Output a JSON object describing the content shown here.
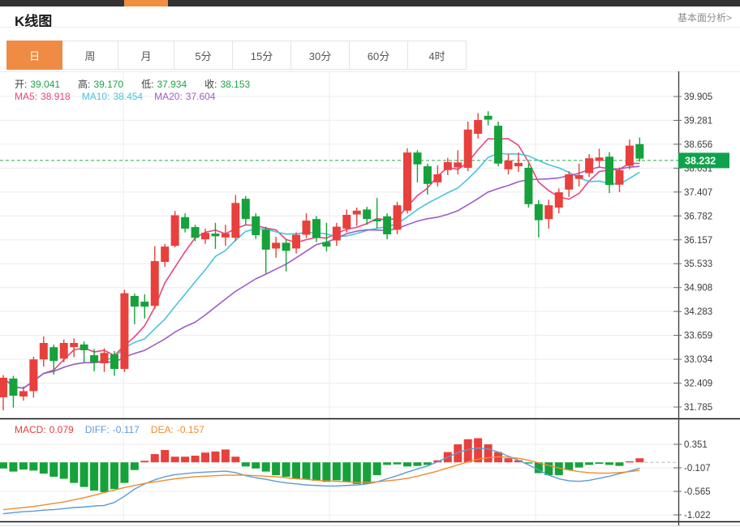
{
  "header": {
    "title": "K线图",
    "link": "基本面分析>"
  },
  "tabs": [
    {
      "label": "日",
      "active": true
    },
    {
      "label": "周",
      "active": false
    },
    {
      "label": "月",
      "active": false
    },
    {
      "label": "5分",
      "active": false
    },
    {
      "label": "15分",
      "active": false
    },
    {
      "label": "30分",
      "active": false
    },
    {
      "label": "60分",
      "active": false
    },
    {
      "label": "4时",
      "active": false
    }
  ],
  "legend": {
    "ohlc": [
      {
        "label": "开:",
        "value": "39.041"
      },
      {
        "label": "高:",
        "value": "39.170"
      },
      {
        "label": "低:",
        "value": "37.934"
      },
      {
        "label": "收:",
        "value": "38.153"
      }
    ],
    "ma": [
      {
        "label": "MA5:",
        "value": "38.918",
        "color": "#e8467c"
      },
      {
        "label": "MA10:",
        "value": "38.454",
        "color": "#45c5de"
      },
      {
        "label": "MA20:",
        "value": "37.604",
        "color": "#a05cc5"
      }
    ],
    "macd": [
      {
        "label": "MACD:",
        "value": "0.079",
        "color": "#e23e3e"
      },
      {
        "label": "DIFF:",
        "value": "-0.117",
        "color": "#5b9bd5"
      },
      {
        "label": "DEA:",
        "value": "-0.157",
        "color": "#ef8b31"
      }
    ]
  },
  "price_badge": "38.232",
  "colors": {
    "up": "#e8403c",
    "down": "#15a23a",
    "badge": "#0fa24c",
    "ma5": "#e8467c",
    "ma10": "#45c5de",
    "ma20": "#a05cc5",
    "diff": "#5b9bd5",
    "dea": "#ef8b31",
    "grid": "#ececec",
    "axis": "#444444",
    "dashed_price": "#2aa84a"
  },
  "chart_data": {
    "type": "candlestick+macd",
    "title": "K线图",
    "grid": true,
    "price_axis": {
      "ticks": [
        39.905,
        39.281,
        38.656,
        38.031,
        37.407,
        36.782,
        36.157,
        35.533,
        34.908,
        34.283,
        33.659,
        33.034,
        32.409,
        31.785
      ],
      "current_price": 38.232
    },
    "macd_axis": {
      "ticks": [
        0.351,
        -0.107,
        -0.565,
        -1.022
      ]
    },
    "candles": [
      [
        32.04,
        32.62,
        31.7,
        32.55
      ],
      [
        32.53,
        32.6,
        31.77,
        32.08
      ],
      [
        32.06,
        32.32,
        31.95,
        32.2
      ],
      [
        32.2,
        33.1,
        32.03,
        33.03
      ],
      [
        33.03,
        33.63,
        32.84,
        33.46
      ],
      [
        33.35,
        33.42,
        32.63,
        32.99
      ],
      [
        33.05,
        33.55,
        32.95,
        33.46
      ],
      [
        33.35,
        33.58,
        33.09,
        33.46
      ],
      [
        33.42,
        33.5,
        32.95,
        33.27
      ],
      [
        33.14,
        33.3,
        32.72,
        32.95
      ],
      [
        32.93,
        33.32,
        32.7,
        33.2
      ],
      [
        33.16,
        33.25,
        32.6,
        32.78
      ],
      [
        32.78,
        34.85,
        32.7,
        34.76
      ],
      [
        34.69,
        34.75,
        33.95,
        34.41
      ],
      [
        34.54,
        34.73,
        34.1,
        34.41
      ],
      [
        34.43,
        35.99,
        34.35,
        35.6
      ],
      [
        35.58,
        36.05,
        35.45,
        35.98
      ],
      [
        36.0,
        36.91,
        35.96,
        36.8
      ],
      [
        36.75,
        36.85,
        36.35,
        36.45
      ],
      [
        36.49,
        36.55,
        36.12,
        36.21
      ],
      [
        36.17,
        36.45,
        36.05,
        36.34
      ],
      [
        36.32,
        36.6,
        35.92,
        36.25
      ],
      [
        36.22,
        36.55,
        36.0,
        36.32
      ],
      [
        36.21,
        37.33,
        36.12,
        37.12
      ],
      [
        37.23,
        37.3,
        36.55,
        36.7
      ],
      [
        36.77,
        36.85,
        36.18,
        36.28
      ],
      [
        36.42,
        36.5,
        35.28,
        35.9
      ],
      [
        35.93,
        36.24,
        35.69,
        36.08
      ],
      [
        36.08,
        36.15,
        35.33,
        35.87
      ],
      [
        35.93,
        36.35,
        35.8,
        36.29
      ],
      [
        36.29,
        36.85,
        36.2,
        36.66
      ],
      [
        36.7,
        36.78,
        36.1,
        36.21
      ],
      [
        36.1,
        36.6,
        35.85,
        35.98
      ],
      [
        36.14,
        36.6,
        36.0,
        36.5
      ],
      [
        36.45,
        36.95,
        36.35,
        36.81
      ],
      [
        36.82,
        37.0,
        36.52,
        36.92
      ],
      [
        36.95,
        37.02,
        36.55,
        36.7
      ],
      [
        36.69,
        37.25,
        36.45,
        36.64
      ],
      [
        36.77,
        36.85,
        36.17,
        36.3
      ],
      [
        36.42,
        37.15,
        36.3,
        37.06
      ],
      [
        36.92,
        38.55,
        36.85,
        38.44
      ],
      [
        38.44,
        38.5,
        37.66,
        38.13
      ],
      [
        38.08,
        38.15,
        37.34,
        37.62
      ],
      [
        37.66,
        38.1,
        37.55,
        37.87
      ],
      [
        37.98,
        38.3,
        37.85,
        38.19
      ],
      [
        38.05,
        38.5,
        37.87,
        38.18
      ],
      [
        38.04,
        39.25,
        37.95,
        39.04
      ],
      [
        38.93,
        39.47,
        38.8,
        39.29
      ],
      [
        39.4,
        39.52,
        39.15,
        39.3
      ],
      [
        39.14,
        39.25,
        38.08,
        38.15
      ],
      [
        38.0,
        38.4,
        37.87,
        38.23
      ],
      [
        38.08,
        38.44,
        37.93,
        38.17
      ],
      [
        38.04,
        38.15,
        37.0,
        37.09
      ],
      [
        37.09,
        37.2,
        36.22,
        36.67
      ],
      [
        36.7,
        37.2,
        36.45,
        37.06
      ],
      [
        37.0,
        37.5,
        36.85,
        37.4
      ],
      [
        37.47,
        37.95,
        37.28,
        37.87
      ],
      [
        37.75,
        38.15,
        37.55,
        37.85
      ],
      [
        37.9,
        38.4,
        37.8,
        38.29
      ],
      [
        38.22,
        38.54,
        38.04,
        38.31
      ],
      [
        38.33,
        38.45,
        37.38,
        37.59
      ],
      [
        37.6,
        38.05,
        37.4,
        37.98
      ],
      [
        38.09,
        38.78,
        38.0,
        38.62
      ],
      [
        38.66,
        38.83,
        38.2,
        38.28
      ]
    ],
    "ma_windows": [
      5,
      10,
      20
    ],
    "macd": {
      "histogram": [
        -0.12,
        -0.18,
        -0.14,
        -0.16,
        -0.22,
        -0.28,
        -0.32,
        -0.4,
        -0.48,
        -0.55,
        -0.58,
        -0.52,
        -0.4,
        -0.15,
        0.03,
        0.16,
        0.24,
        0.11,
        0.11,
        0.13,
        0.19,
        0.21,
        0.25,
        0.11,
        -0.08,
        -0.12,
        -0.18,
        -0.25,
        -0.28,
        -0.32,
        -0.33,
        -0.36,
        -0.38,
        -0.35,
        -0.38,
        -0.42,
        -0.42,
        -0.25,
        -0.05,
        -0.04,
        -0.08,
        -0.07,
        -0.05,
        0.04,
        0.2,
        0.35,
        0.45,
        0.47,
        0.35,
        0.2,
        0.08,
        0.04,
        -0.02,
        -0.21,
        -0.25,
        -0.25,
        -0.15,
        -0.1,
        -0.05,
        -0.03,
        -0.05,
        -0.07,
        0.02,
        0.079
      ],
      "diff": [
        -1.0,
        -0.98,
        -0.96,
        -0.95,
        -0.93,
        -0.92,
        -0.9,
        -0.88,
        -0.87,
        -0.85,
        -0.84,
        -0.78,
        -0.66,
        -0.52,
        -0.42,
        -0.34,
        -0.28,
        -0.24,
        -0.22,
        -0.2,
        -0.19,
        -0.18,
        -0.17,
        -0.2,
        -0.26,
        -0.3,
        -0.33,
        -0.37,
        -0.4,
        -0.42,
        -0.44,
        -0.45,
        -0.46,
        -0.46,
        -0.45,
        -0.44,
        -0.42,
        -0.38,
        -0.32,
        -0.26,
        -0.19,
        -0.13,
        -0.07,
        0.01,
        0.1,
        0.19,
        0.25,
        0.28,
        0.26,
        0.2,
        0.12,
        0.04,
        -0.05,
        -0.15,
        -0.25,
        -0.32,
        -0.36,
        -0.37,
        -0.35,
        -0.31,
        -0.27,
        -0.22,
        -0.17,
        -0.117
      ],
      "dea": [
        -0.92,
        -0.9,
        -0.88,
        -0.86,
        -0.83,
        -0.8,
        -0.77,
        -0.73,
        -0.69,
        -0.64,
        -0.59,
        -0.54,
        -0.49,
        -0.45,
        -0.41,
        -0.38,
        -0.35,
        -0.32,
        -0.3,
        -0.28,
        -0.27,
        -0.26,
        -0.25,
        -0.25,
        -0.25,
        -0.26,
        -0.27,
        -0.28,
        -0.3,
        -0.32,
        -0.33,
        -0.35,
        -0.36,
        -0.37,
        -0.38,
        -0.39,
        -0.39,
        -0.38,
        -0.36,
        -0.34,
        -0.31,
        -0.27,
        -0.22,
        -0.17,
        -0.11,
        -0.05,
        0.01,
        0.06,
        0.09,
        0.11,
        0.1,
        0.08,
        0.04,
        -0.01,
        -0.06,
        -0.11,
        -0.15,
        -0.18,
        -0.2,
        -0.21,
        -0.21,
        -0.2,
        -0.18,
        -0.157
      ]
    }
  }
}
